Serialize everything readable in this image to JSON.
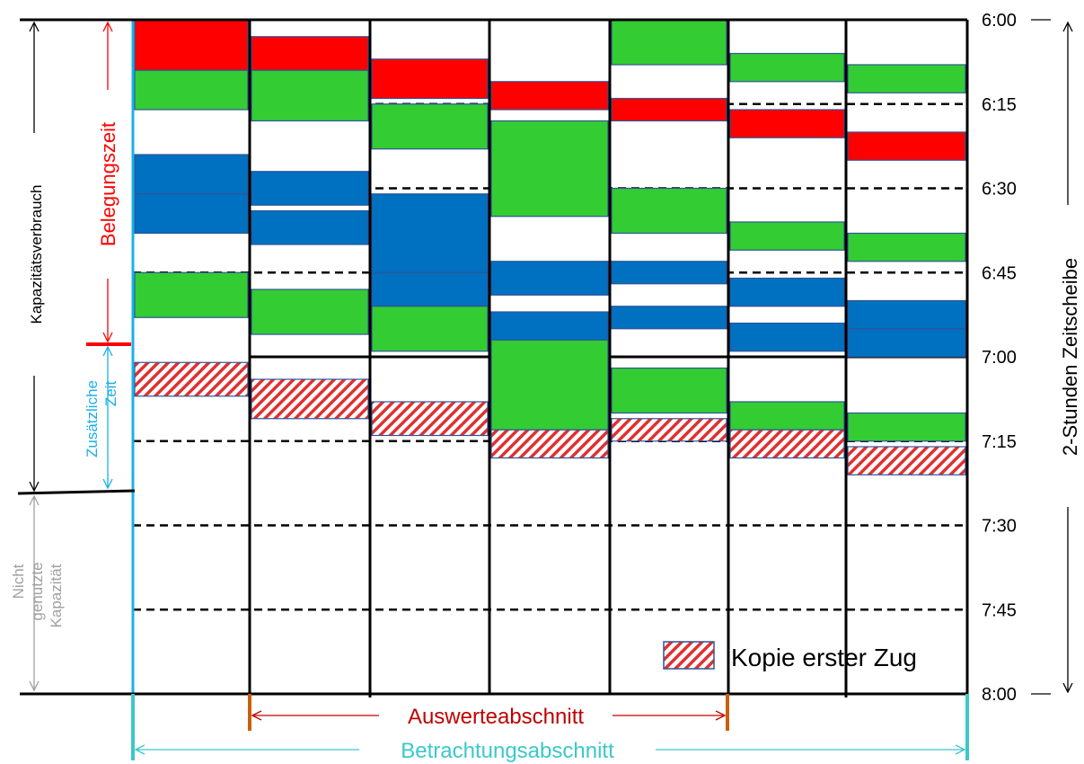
{
  "time_labels": [
    "6:00",
    "6:15",
    "6:30",
    "6:45",
    "7:00",
    "7:15",
    "7:30",
    "7:45",
    "8:00"
  ],
  "left_labels": {
    "kapazitaet": "Kapazitätsverbrauch",
    "belegung": "Belegungszeit",
    "zusaetzlich_line1": "Zusätzliche",
    "zusaetzlich_line2": "Zeit",
    "nicht_line1": "Nicht",
    "nicht_line2": "genutzte",
    "nicht_line3": "Kapazität"
  },
  "right_label": "2-Stunden Zeitscheibe",
  "bottom_labels": {
    "auswerte": "Auswerteabschnitt",
    "betrachtung": "Betrachtungsabschnitt"
  },
  "legend": {
    "copy_label": "Kopie erster Zug"
  },
  "colors": {
    "red": "#ff0000",
    "green": "#33cc33",
    "blue": "#0070c0",
    "hatch": "#e03030",
    "cyan": "#1ab0e8",
    "teal": "#3cc8c8",
    "orange": "#c86010",
    "dark_red": "#c00000",
    "gray": "#a0a0a0"
  },
  "sections": [
    {
      "blocks": [
        {
          "c": "red",
          "s": "6:00",
          "e": "6:09"
        },
        {
          "c": "green",
          "s": "6:09",
          "e": "6:16"
        },
        {
          "c": "blue",
          "s": "6:24",
          "e": "6:31"
        },
        {
          "c": "blue",
          "s": "6:31",
          "e": "6:38"
        },
        {
          "c": "green",
          "s": "6:45",
          "e": "6:53"
        },
        {
          "c": "hatch",
          "s": "7:01",
          "e": "7:07"
        }
      ]
    },
    {
      "blocks": [
        {
          "c": "red",
          "s": "6:03",
          "e": "6:09"
        },
        {
          "c": "green",
          "s": "6:09",
          "e": "6:18"
        },
        {
          "c": "blue",
          "s": "6:27",
          "e": "6:33"
        },
        {
          "c": "blue",
          "s": "6:34",
          "e": "6:40"
        },
        {
          "c": "green",
          "s": "6:48",
          "e": "6:56"
        },
        {
          "c": "hatch",
          "s": "7:04",
          "e": "7:11"
        }
      ]
    },
    {
      "blocks": [
        {
          "c": "red",
          "s": "6:07",
          "e": "6:14"
        },
        {
          "c": "green",
          "s": "6:15",
          "e": "6:23"
        },
        {
          "c": "blue",
          "s": "6:31",
          "e": "6:45"
        },
        {
          "c": "blue",
          "s": "6:45",
          "e": "6:51"
        },
        {
          "c": "green",
          "s": "6:51",
          "e": "6:59"
        },
        {
          "c": "hatch",
          "s": "7:08",
          "e": "7:14"
        }
      ]
    },
    {
      "blocks": [
        {
          "c": "red",
          "s": "6:11",
          "e": "6:16"
        },
        {
          "c": "green",
          "s": "6:18",
          "e": "6:35"
        },
        {
          "c": "blue",
          "s": "6:43",
          "e": "6:49"
        },
        {
          "c": "blue",
          "s": "6:52",
          "e": "6:57"
        },
        {
          "c": "green",
          "s": "6:57",
          "e": "7:13"
        },
        {
          "c": "hatch",
          "s": "7:13",
          "e": "7:18"
        }
      ]
    },
    {
      "blocks": [
        {
          "c": "green",
          "s": "6:00",
          "e": "6:08"
        },
        {
          "c": "red",
          "s": "6:14",
          "e": "6:18"
        },
        {
          "c": "green",
          "s": "6:30",
          "e": "6:38"
        },
        {
          "c": "blue",
          "s": "6:43",
          "e": "6:47"
        },
        {
          "c": "blue",
          "s": "6:51",
          "e": "6:55"
        },
        {
          "c": "green",
          "s": "7:02",
          "e": "7:10"
        },
        {
          "c": "hatch",
          "s": "7:11",
          "e": "7:15"
        }
      ]
    },
    {
      "blocks": [
        {
          "c": "green",
          "s": "6:06",
          "e": "6:11"
        },
        {
          "c": "red",
          "s": "6:16",
          "e": "6:21"
        },
        {
          "c": "green",
          "s": "6:36",
          "e": "6:41"
        },
        {
          "c": "blue",
          "s": "6:46",
          "e": "6:51"
        },
        {
          "c": "blue",
          "s": "6:54",
          "e": "6:59"
        },
        {
          "c": "green",
          "s": "7:08",
          "e": "7:13"
        },
        {
          "c": "hatch",
          "s": "7:13",
          "e": "7:18"
        }
      ]
    },
    {
      "blocks": [
        {
          "c": "green",
          "s": "6:08",
          "e": "6:13"
        },
        {
          "c": "red",
          "s": "6:20",
          "e": "6:25"
        },
        {
          "c": "green",
          "s": "6:38",
          "e": "6:43"
        },
        {
          "c": "blue",
          "s": "6:50",
          "e": "6:55"
        },
        {
          "c": "blue",
          "s": "6:55",
          "e": "7:00"
        },
        {
          "c": "green",
          "s": "7:10",
          "e": "7:15"
        },
        {
          "c": "hatch",
          "s": "7:16",
          "e": "7:21"
        }
      ]
    }
  ]
}
